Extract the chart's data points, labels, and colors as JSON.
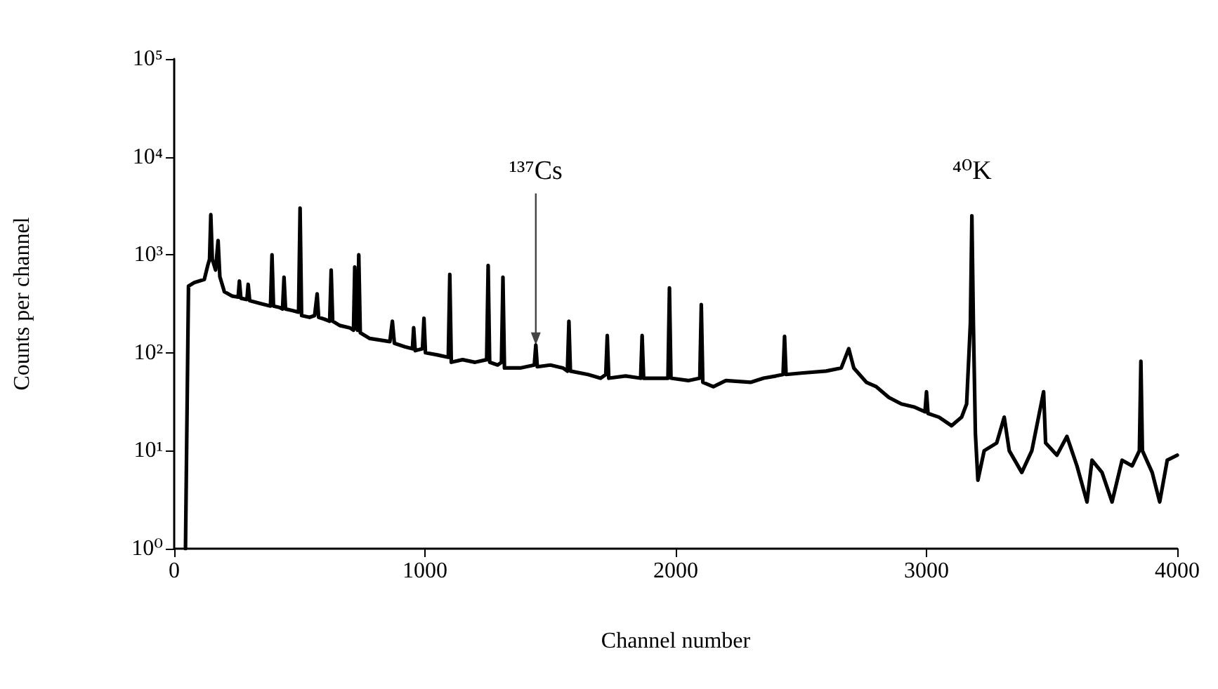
{
  "chart_data": {
    "type": "line",
    "xlabel": "Channel number",
    "ylabel": "Counts per channel",
    "log": "y",
    "grid": false,
    "marker": "none",
    "line_style": "solid",
    "xlim": [
      0,
      4000
    ],
    "xticks": [
      0,
      1000,
      2000,
      3000,
      4000
    ],
    "ylim": [
      1,
      100000
    ],
    "yticks": [
      {
        "value": 1,
        "label": "10⁰"
      },
      {
        "value": 10,
        "label": "10¹"
      },
      {
        "value": 100,
        "label": "10²"
      },
      {
        "value": 1000,
        "label": "10³"
      },
      {
        "value": 10000,
        "label": "10⁴"
      },
      {
        "value": 100000,
        "label": "10⁵"
      }
    ],
    "annotations": [
      {
        "text": "¹³⁷Cs",
        "x": 1442,
        "y": 120
      },
      {
        "text": "⁴⁰K",
        "x": 3181,
        "y": 2500
      }
    ],
    "series": [
      {
        "color": "#000000",
        "x": [
          45,
          57,
          80,
          100,
          120,
          135,
          141,
          146,
          152,
          165,
          175,
          182,
          200,
          230,
          255,
          260,
          266,
          290,
          295,
          301,
          340,
          384,
          390,
          396,
          420,
          432,
          438,
          444,
          470,
          496,
          502,
          508,
          540,
          560,
          570,
          576,
          600,
          620,
          626,
          632,
          660,
          700,
          715,
          720,
          726,
          731,
          736,
          742,
          780,
          820,
          860,
          870,
          878,
          920,
          950,
          955,
          961,
          990,
          996,
          1002,
          1050,
          1093,
          1099,
          1105,
          1150,
          1200,
          1246,
          1252,
          1258,
          1290,
          1305,
          1311,
          1317,
          1380,
          1436,
          1442,
          1448,
          1500,
          1550,
          1568,
          1574,
          1580,
          1650,
          1700,
          1721,
          1727,
          1733,
          1800,
          1860,
          1866,
          1872,
          1920,
          1969,
          1975,
          1981,
          2050,
          2096,
          2102,
          2108,
          2150,
          2200,
          2300,
          2350,
          2400,
          2428,
          2434,
          2440,
          2500,
          2600,
          2660,
          2690,
          2710,
          2760,
          2800,
          2850,
          2900,
          2950,
          2994,
          3000,
          3006,
          3050,
          3100,
          3140,
          3160,
          3175,
          3181,
          3187,
          3195,
          3205,
          3230,
          3280,
          3310,
          3330,
          3380,
          3420,
          3467,
          3475,
          3520,
          3560,
          3600,
          3640,
          3660,
          3700,
          3740,
          3780,
          3820,
          3849,
          3855,
          3861,
          3900,
          3930,
          3960,
          4000
        ],
        "values": [
          1,
          480,
          520,
          540,
          560,
          800,
          900,
          2570,
          900,
          700,
          1400,
          600,
          420,
          380,
          370,
          540,
          360,
          350,
          500,
          340,
          320,
          300,
          1000,
          300,
          290,
          280,
          590,
          280,
          270,
          260,
          3000,
          240,
          230,
          240,
          400,
          230,
          220,
          210,
          700,
          210,
          190,
          180,
          170,
          750,
          180,
          170,
          1000,
          160,
          140,
          135,
          130,
          210,
          125,
          115,
          110,
          180,
          105,
          110,
          225,
          100,
          95,
          90,
          630,
          80,
          85,
          80,
          85,
          780,
          80,
          75,
          80,
          590,
          70,
          70,
          75,
          120,
          72,
          75,
          70,
          65,
          210,
          65,
          60,
          55,
          60,
          150,
          55,
          58,
          55,
          150,
          55,
          55,
          55,
          460,
          55,
          52,
          55,
          310,
          50,
          45,
          52,
          50,
          55,
          58,
          60,
          147,
          60,
          62,
          65,
          70,
          110,
          70,
          50,
          45,
          35,
          30,
          28,
          25,
          40,
          24,
          22,
          18,
          22,
          30,
          200,
          2500,
          200,
          15,
          5,
          10,
          12,
          22,
          10,
          6,
          10,
          40,
          12,
          9,
          14,
          7,
          3,
          8,
          6,
          3,
          8,
          7,
          10,
          82,
          10,
          6,
          3,
          8,
          9
        ]
      }
    ]
  }
}
